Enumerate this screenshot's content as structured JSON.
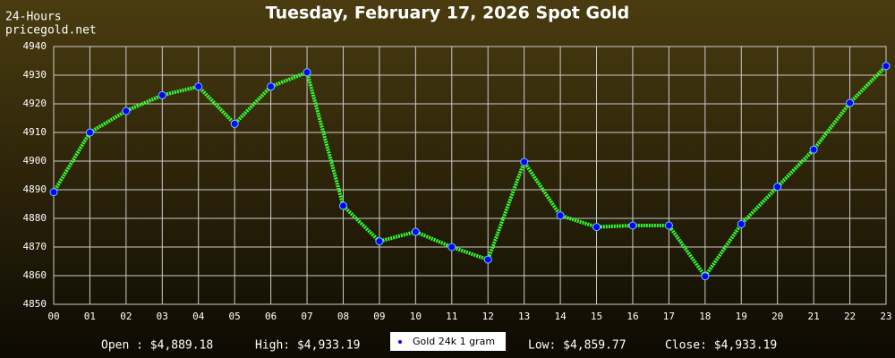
{
  "chart_data": {
    "type": "line",
    "title": "Tuesday, February 17, 2026 Spot Gold",
    "subtitle": [
      "24-Hours",
      "pricegold.net"
    ],
    "categories": [
      "00",
      "01",
      "02",
      "03",
      "04",
      "05",
      "06",
      "07",
      "08",
      "09",
      "10",
      "11",
      "12",
      "13",
      "14",
      "15",
      "16",
      "17",
      "18",
      "19",
      "20",
      "21",
      "22",
      "23"
    ],
    "series": [
      {
        "name": "Gold 24k 1 gram",
        "color": "#33ff33",
        "marker_color": "#0000ff",
        "values": [
          4889.18,
          4910,
          4917.5,
          4923,
          4926,
          4913,
          4926,
          4931,
          4884.4,
          4872,
          4875.3,
          4870,
          4865.6,
          4899.7,
          4881,
          4877,
          4877.5,
          4877.5,
          4859.77,
          4878,
          4891,
          4904,
          4920.3,
          4933.19
        ]
      }
    ],
    "ylim": [
      4850,
      4940
    ],
    "yticks": [
      4850,
      4860,
      4870,
      4880,
      4890,
      4900,
      4910,
      4920,
      4930,
      4940
    ],
    "grid": true,
    "stats": [
      "Open : $4,889.18",
      "High: $4,933.19",
      "Low: $4,859.77",
      "Close: $4,933.19"
    ]
  }
}
